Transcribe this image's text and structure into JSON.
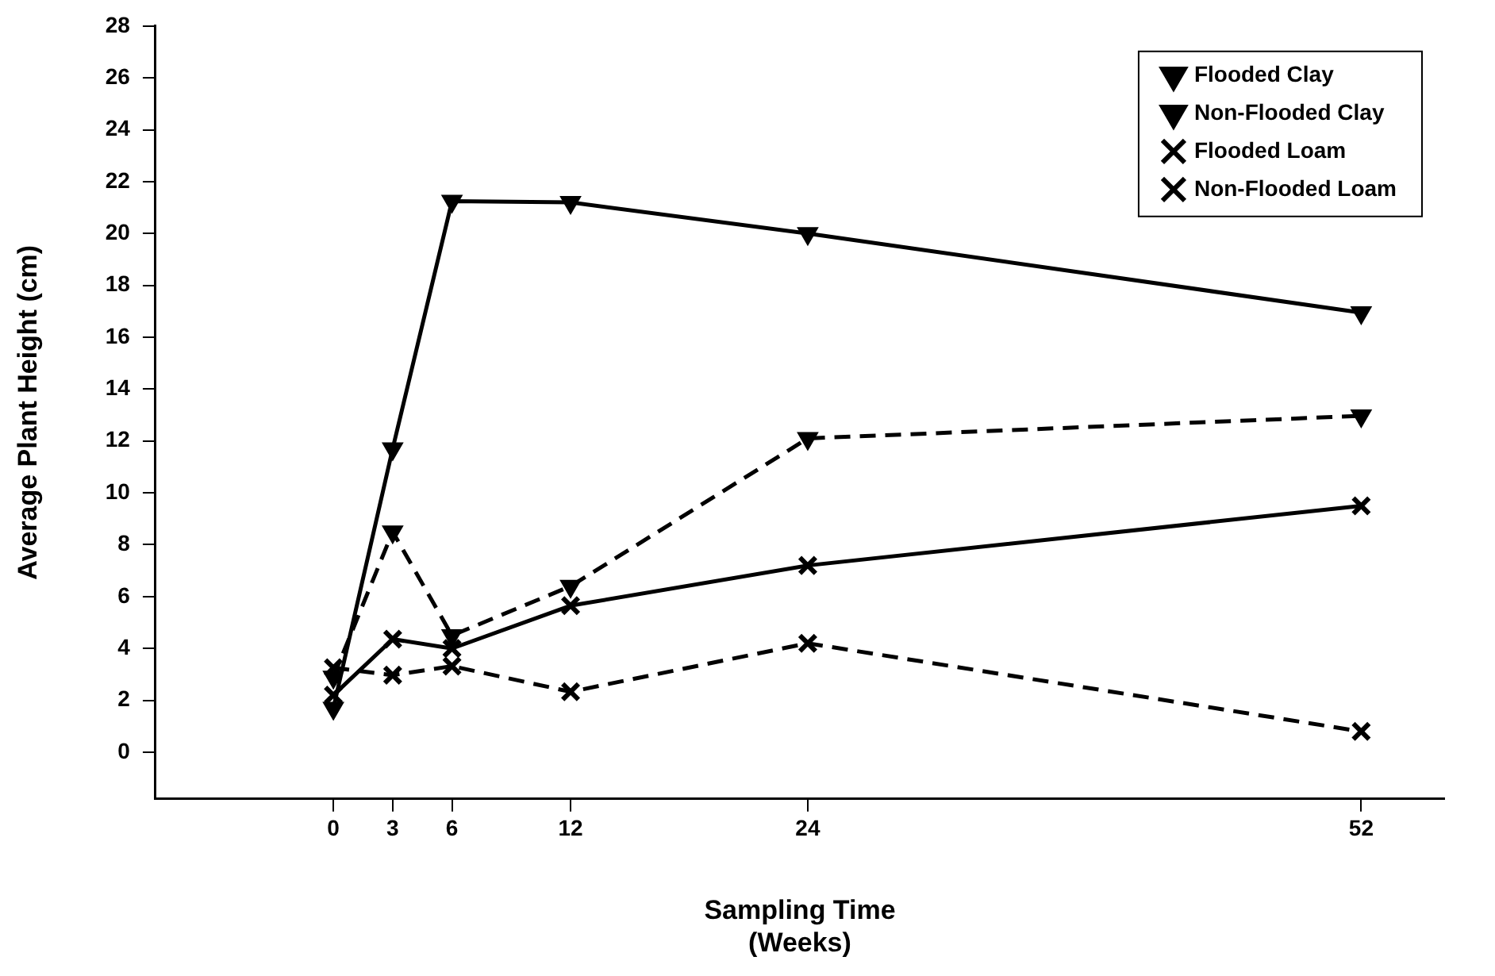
{
  "chart_data": {
    "type": "line",
    "xlabel": "Sampling Time\n(Weeks)",
    "ylabel": "Average Plant Height (cm)",
    "x": [
      0,
      3,
      6,
      12,
      24,
      52
    ],
    "xlim": [
      -9,
      56.2
    ],
    "xticks": [
      0,
      3,
      6,
      12,
      24,
      52
    ],
    "ylim": [
      -1.8,
      28
    ],
    "yticks": [
      0,
      2,
      4,
      6,
      8,
      10,
      12,
      14,
      16,
      18,
      20,
      22,
      24,
      26,
      28
    ],
    "grid": false,
    "legend": "top right",
    "series": [
      {
        "name": "Flooded Clay",
        "color": "#000000",
        "marker": "triangle",
        "line_style": "solid",
        "values": [
          1.7,
          11.7,
          21.25,
          21.2,
          20.0,
          16.95
        ]
      },
      {
        "name": "Non-Flooded Clay",
        "color": "#000000",
        "marker": "triangle",
        "line_style": "dashed",
        "values": [
          2.9,
          8.5,
          4.5,
          6.4,
          12.1,
          12.97
        ]
      },
      {
        "name": "Flooded Loam",
        "color": "#000000",
        "marker": "cross",
        "line_style": "solid",
        "values": [
          2.2,
          4.36,
          4.0,
          5.65,
          7.2,
          9.5
        ]
      },
      {
        "name": "Non-Flooded Loam",
        "color": "#000000",
        "marker": "cross",
        "line_style": "dashed",
        "values": [
          3.26,
          2.97,
          3.32,
          2.33,
          4.2,
          0.8
        ]
      }
    ]
  }
}
